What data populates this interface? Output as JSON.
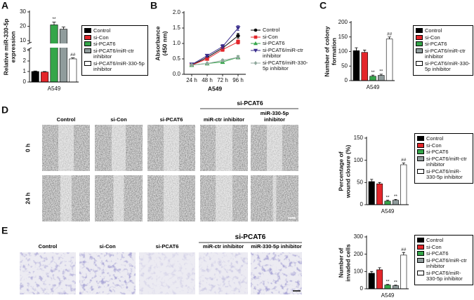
{
  "chart_data": [
    {
      "type": "bar",
      "panel_label": "A",
      "ylabel": [
        "Relative miR-330-5p",
        "expression"
      ],
      "categories": [
        "A549"
      ],
      "ylim": [
        0,
        30
      ],
      "axis_break": [
        3,
        10
      ],
      "yticks": [
        0,
        1,
        2,
        3,
        10,
        20,
        30
      ],
      "legend_box": true,
      "series": [
        {
          "name": "Control",
          "color": "#000000",
          "values": [
            1.0
          ],
          "errors": [
            0.05
          ]
        },
        {
          "name": "si-Con",
          "color": "#e3262b",
          "values": [
            0.95
          ],
          "errors": [
            0.05
          ]
        },
        {
          "name": "si-PCAT6",
          "color": "#35a64a",
          "values": [
            21
          ],
          "errors": [
            2
          ],
          "annotation": "**"
        },
        {
          "name": "si-PCAT6/miR-ctr inhibitor",
          "color": "#909c9c",
          "values": [
            18
          ],
          "errors": [
            1.5
          ]
        },
        {
          "name": "si-PCAT6/miR-330-5p inhibitor",
          "color": "#ffffff",
          "values": [
            2.2
          ],
          "errors": [
            0.1
          ],
          "annotation": "##"
        }
      ]
    },
    {
      "type": "line",
      "panel_label": "B",
      "ylabel": [
        "Absorbance",
        "(450 nm)"
      ],
      "xlabel": "A549",
      "categories": [
        "24 h",
        "48 h",
        "72 h",
        "96 h"
      ],
      "ylim": [
        0,
        2
      ],
      "yticks": [
        {
          "value": 0,
          "label": "0.0"
        },
        0.5,
        {
          "value": 1,
          "label": "1.0"
        },
        1.5,
        {
          "value": 2,
          "label": "2.0"
        }
      ],
      "legend_box": false,
      "series": [
        {
          "name": "Control",
          "color": "#000000",
          "marker": "circle",
          "values": [
            0.3,
            0.55,
            0.85,
            1.25
          ],
          "errors": [
            0.03,
            0.05,
            0.06,
            0.08
          ]
        },
        {
          "name": "si-Con",
          "color": "#e3262b",
          "marker": "square",
          "values": [
            0.3,
            0.5,
            0.8,
            1.05
          ],
          "errors": [
            0.03,
            0.05,
            0.06,
            0.07
          ]
        },
        {
          "name": "si-PCAT6",
          "color": "#35a64a",
          "marker": "triangle",
          "values": [
            0.3,
            0.35,
            0.4,
            0.55
          ],
          "errors": [
            0.03,
            0.03,
            0.04,
            0.05
          ]
        },
        {
          "name": "si-PCAT6/miR-ctr inhibitor",
          "color": "#3a2d8c",
          "marker": "triangle-down",
          "values": [
            0.32,
            0.6,
            0.9,
            1.5
          ],
          "errors": [
            0.03,
            0.05,
            0.07,
            0.08
          ]
        },
        {
          "name": "si-PCAT6/miR-330-5p inhibitor",
          "color": "#8fa79c",
          "marker": "diamond",
          "values": [
            0.3,
            0.35,
            0.45,
            0.55
          ],
          "errors": [
            0.03,
            0.03,
            0.04,
            0.06
          ]
        }
      ]
    },
    {
      "type": "bar",
      "panel_label": "C",
      "ylabel": [
        "Number of colony",
        "formation"
      ],
      "categories": [
        "A549"
      ],
      "ylim": [
        0,
        200
      ],
      "yticks": [
        0,
        50,
        100,
        150,
        200
      ],
      "legend_box": true,
      "series": [
        {
          "name": "Control",
          "color": "#000000",
          "values": [
            103
          ],
          "errors": [
            10
          ]
        },
        {
          "name": "si-Con",
          "color": "#e3262b",
          "values": [
            97
          ],
          "errors": [
            8
          ]
        },
        {
          "name": "si-PCAT6",
          "color": "#35a64a",
          "values": [
            15
          ],
          "errors": [
            4
          ],
          "annotation": "**"
        },
        {
          "name": "si-PCAT6/miR-ctr inhibitor",
          "color": "#909c9c",
          "values": [
            18
          ],
          "errors": [
            4
          ],
          "annotation": "**"
        },
        {
          "name": "si-PCAT6/miR-330-5p inhibitor",
          "color": "#ffffff",
          "values": [
            143
          ],
          "errors": [
            7
          ],
          "annotation": "##"
        }
      ]
    },
    {
      "type": "bar",
      "panel_label": "D",
      "ylabel": [
        "Percentage of",
        "wound closure (%)"
      ],
      "categories": [
        "A549"
      ],
      "ylim": [
        0,
        150
      ],
      "yticks": [
        0,
        50,
        100,
        150
      ],
      "legend_box": true,
      "series": [
        {
          "name": "Control",
          "color": "#000000",
          "values": [
            52
          ],
          "errors": [
            5
          ]
        },
        {
          "name": "si-Con",
          "color": "#e3262b",
          "values": [
            47
          ],
          "errors": [
            3
          ]
        },
        {
          "name": "si-PCAT6",
          "color": "#35a64a",
          "values": [
            8
          ],
          "errors": [
            2
          ],
          "annotation": "**"
        },
        {
          "name": "si-PCAT6/miR-ctr inhibitor",
          "color": "#909c9c",
          "values": [
            10
          ],
          "errors": [
            2
          ],
          "annotation": "**"
        },
        {
          "name": "si-PCAT6/miR-330-5p inhibitor",
          "color": "#ffffff",
          "values": [
            90
          ],
          "errors": [
            4
          ],
          "annotation": "##"
        }
      ]
    },
    {
      "type": "bar",
      "panel_label": "E",
      "ylabel": [
        "Number of",
        "invaded cells"
      ],
      "categories": [
        "A549"
      ],
      "ylim": [
        0,
        300
      ],
      "yticks": [
        0,
        100,
        200,
        300
      ],
      "legend_box": true,
      "series": [
        {
          "name": "Control",
          "color": "#000000",
          "values": [
            90
          ],
          "errors": [
            10
          ]
        },
        {
          "name": "si-Con",
          "color": "#e3262b",
          "values": [
            110
          ],
          "errors": [
            12
          ]
        },
        {
          "name": "si-PCAT6",
          "color": "#35a64a",
          "values": [
            22
          ],
          "errors": [
            3
          ],
          "annotation": "**"
        },
        {
          "name": "si-PCAT6/miR-ctr inhibitor",
          "color": "#909c9c",
          "values": [
            18
          ],
          "errors": [
            3
          ],
          "annotation": "**"
        },
        {
          "name": "si-PCAT6/miR-330-5p inhibitor",
          "color": "#ffffff",
          "values": [
            195
          ],
          "errors": [
            15
          ],
          "annotation": "##"
        }
      ]
    }
  ],
  "micrographs": {
    "D": {
      "group_label": "si-PCAT6",
      "columns": [
        "Control",
        "si-Con",
        "si-PCAT6",
        "miR-ctr inhibitor",
        "miR-330-5p inhibitor"
      ],
      "rows": [
        "0 h",
        "24 h"
      ]
    },
    "E": {
      "group_label": "si-PCAT6",
      "columns": [
        "Control",
        "si-Con",
        "si-PCAT6",
        "miR-ctr inhibitor",
        "miR-330-5p inhibitor"
      ]
    }
  }
}
